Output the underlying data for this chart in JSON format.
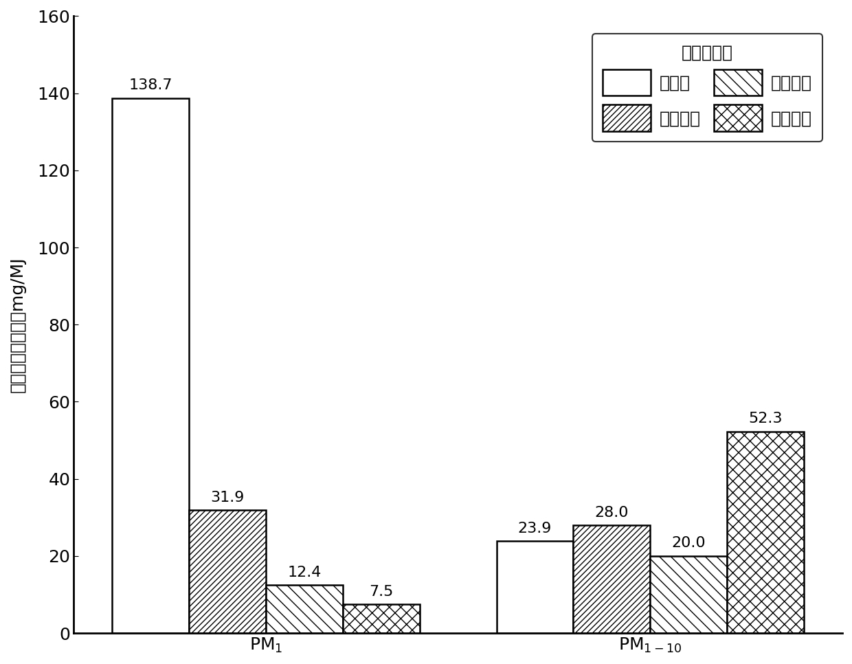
{
  "series": [
    {
      "label": "不处理",
      "hatch": "",
      "facecolor": "white",
      "edgecolor": "black",
      "values": [
        138.7,
        23.9
      ]
    },
    {
      "label": "水洗烘焙",
      "hatch": "////",
      "facecolor": "white",
      "edgecolor": "black",
      "values": [
        31.9,
        28.0
      ]
    },
    {
      "label": "烘焙水洗",
      "hatch": "\\\\",
      "facecolor": "white",
      "edgecolor": "black",
      "values": [
        12.4,
        20.0
      ]
    },
    {
      "label": "水热碳化",
      "hatch": "xx",
      "facecolor": "white",
      "edgecolor": "black",
      "values": [
        7.5,
        52.3
      ]
    }
  ],
  "ylabel": "细颗粒物生成量，mg/MJ",
  "ylim": [
    0,
    160
  ],
  "yticks": [
    0,
    20,
    40,
    60,
    80,
    100,
    120,
    140,
    160
  ],
  "legend_title": "热处理方式",
  "bar_width": 0.12,
  "group_centers": [
    0.25,
    0.85
  ],
  "xlim": [
    -0.05,
    1.15
  ],
  "background_color": "white",
  "label_fontsize": 18,
  "tick_fontsize": 18,
  "annotation_fontsize": 16,
  "legend_fontsize": 18,
  "legend_title_fontsize": 18,
  "value_labels": [
    "138.7",
    "31.9",
    "12.4",
    "7.5",
    "23.9",
    "28.0",
    "20.0",
    "52.3"
  ],
  "xtick_labels": [
    "PM",
    "PM"
  ],
  "xtick_subscripts": [
    "1",
    "1-10"
  ]
}
